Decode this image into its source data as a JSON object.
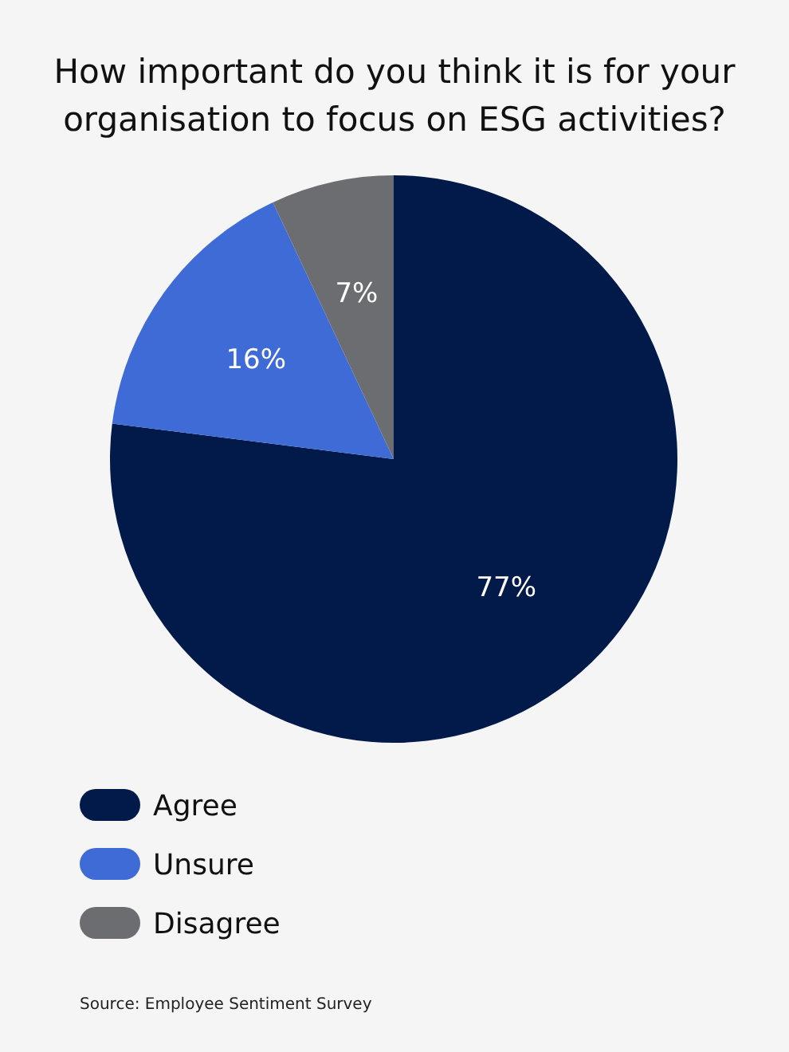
{
  "chart_data": {
    "type": "pie",
    "title": "How important do you think it is for your organisation to focus on ESG activities?",
    "categories": [
      "Agree",
      "Unsure",
      "Disagree"
    ],
    "values": [
      77,
      16,
      7
    ],
    "colors": [
      "#021a4a",
      "#3e6bd6",
      "#6c6d70"
    ],
    "value_labels": [
      "77%",
      "16%",
      "7%"
    ],
    "legend": "bottom left",
    "annotations": [
      "Source: Employee Sentiment Survey"
    ]
  }
}
